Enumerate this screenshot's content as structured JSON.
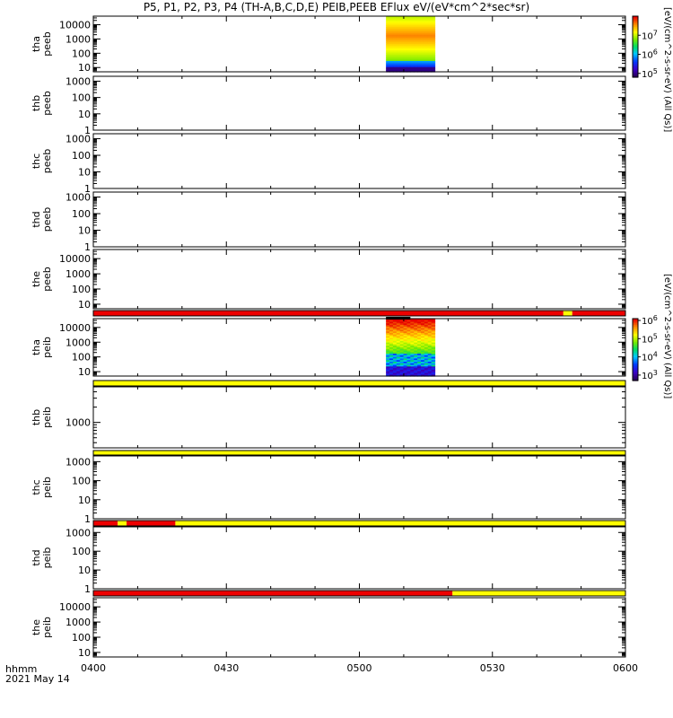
{
  "title": "P5, P1, P2, P3, P4 (TH-A,B,C,D,E) PEIB,PEEB EFlux eV/(eV*cm^2*sec*sr)",
  "footer": {
    "time_label": "hhmm",
    "date_label": "2021 May 14"
  },
  "colors": {
    "red": "#ee0000",
    "yellow": "#ffff00",
    "frame": "#000000"
  },
  "chart_data": {
    "type": "heatmap",
    "x_axis": {
      "ticks": [
        "0400",
        "0430",
        "0500",
        "0530",
        "0600"
      ],
      "range_minutes": [
        0,
        120
      ]
    },
    "colorbars": [
      {
        "label": "[eV/(cm^2-s-sr-eV) (All Qs)]",
        "tick_labels": [
          "10^5",
          "10^6",
          "10^7"
        ],
        "log_range": [
          4.8,
          8.0
        ]
      },
      {
        "label": "[eV/(cm^2-s-sr-eV) (All Qs)]",
        "tick_labels": [
          "10^3",
          "10^4",
          "10^5",
          "10^6"
        ],
        "log_range": [
          2.7,
          6.1
        ]
      }
    ],
    "panels": [
      {
        "probe": "tha",
        "instrument": "peeb",
        "ylabels": [
          "tha",
          "peeb"
        ],
        "ylog": [
          0.7,
          4.6
        ],
        "yticks": [
          10,
          100,
          1000,
          10000
        ],
        "ytick_labels": [
          "10",
          "100",
          "1000",
          "10000"
        ],
        "spectrogram": {
          "x_start": 66,
          "x_end": 77,
          "colorbar": 0
        },
        "status_bar": null
      },
      {
        "probe": "thb",
        "instrument": "peeb",
        "ylabels": [
          "thb",
          "peeb"
        ],
        "ylog": [
          0,
          3.3
        ],
        "yticks": [
          1,
          10,
          100,
          1000
        ],
        "ytick_labels": [
          "1",
          "10",
          "100",
          "1000"
        ],
        "spectrogram": null,
        "status_bar": null
      },
      {
        "probe": "thc",
        "instrument": "peeb",
        "ylabels": [
          "thc",
          "peeb"
        ],
        "ylog": [
          0,
          3.3
        ],
        "yticks": [
          1,
          10,
          100,
          1000
        ],
        "ytick_labels": [
          "1",
          "10",
          "100",
          "1000"
        ],
        "spectrogram": null,
        "status_bar": null
      },
      {
        "probe": "thd",
        "instrument": "peeb",
        "ylabels": [
          "thd",
          "peeb"
        ],
        "ylog": [
          0,
          3.3
        ],
        "yticks": [
          1,
          10,
          100,
          1000
        ],
        "ytick_labels": [
          "1",
          "10",
          "100",
          "1000"
        ],
        "spectrogram": null,
        "status_bar": null
      },
      {
        "probe": "the",
        "instrument": "peeb",
        "ylabels": [
          "the",
          "peeb"
        ],
        "ylog": [
          0.7,
          4.6
        ],
        "yticks": [
          10,
          100,
          1000,
          10000
        ],
        "ytick_labels": [
          "10",
          "100",
          "1000",
          "10000"
        ],
        "spectrogram": null,
        "status_bar": [
          {
            "from": 0,
            "to": 106,
            "color": "red"
          },
          {
            "from": 106,
            "to": 108,
            "color": "yellow"
          },
          {
            "from": 108,
            "to": 120,
            "color": "red"
          }
        ]
      },
      {
        "probe": "tha",
        "instrument": "peib",
        "ylabels": [
          "tha",
          "peib"
        ],
        "ylog": [
          0.7,
          4.6
        ],
        "yticks": [
          10,
          100,
          1000,
          10000
        ],
        "ytick_labels": [
          "10",
          "100",
          "1000",
          "10000"
        ],
        "spectrogram": {
          "x_start": 66,
          "x_end": 77,
          "colorbar": 1
        },
        "status_bar": [
          {
            "from": 0,
            "to": 120,
            "color": "yellow"
          }
        ]
      },
      {
        "probe": "thb",
        "instrument": "peib",
        "ylabels": [
          "thb",
          "peib"
        ],
        "ylog": [
          2.5,
          3.7
        ],
        "yticks": [
          1000
        ],
        "ytick_labels": [
          "1000"
        ],
        "spectrogram": null,
        "status_bar": [
          {
            "from": 0,
            "to": 120,
            "color": "yellow"
          }
        ]
      },
      {
        "probe": "thc",
        "instrument": "peib",
        "ylabels": [
          "thc",
          "peib"
        ],
        "ylog": [
          0,
          3.3
        ],
        "yticks": [
          1,
          10,
          100,
          1000
        ],
        "ytick_labels": [
          "1",
          "10",
          "100",
          "1000"
        ],
        "spectrogram": null,
        "status_bar": [
          {
            "from": 0,
            "to": 5.5,
            "color": "red"
          },
          {
            "from": 5.5,
            "to": 7.5,
            "color": "yellow"
          },
          {
            "from": 7.5,
            "to": 18.5,
            "color": "red"
          },
          {
            "from": 18.5,
            "to": 120,
            "color": "yellow"
          }
        ]
      },
      {
        "probe": "thd",
        "instrument": "peib",
        "ylabels": [
          "thd",
          "peib"
        ],
        "ylog": [
          0,
          3.3
        ],
        "yticks": [
          1,
          10,
          100,
          1000
        ],
        "ytick_labels": [
          "1",
          "10",
          "100",
          "1000"
        ],
        "spectrogram": null,
        "status_bar": [
          {
            "from": 0,
            "to": 81,
            "color": "red"
          },
          {
            "from": 81,
            "to": 120,
            "color": "yellow"
          }
        ]
      },
      {
        "probe": "the",
        "instrument": "peib",
        "ylabels": [
          "the",
          "peib"
        ],
        "ylog": [
          0.7,
          4.6
        ],
        "yticks": [
          10,
          100,
          1000,
          10000
        ],
        "ytick_labels": [
          "10",
          "100",
          "1000",
          "10000"
        ],
        "spectrogram": null,
        "status_bar": null
      }
    ]
  }
}
